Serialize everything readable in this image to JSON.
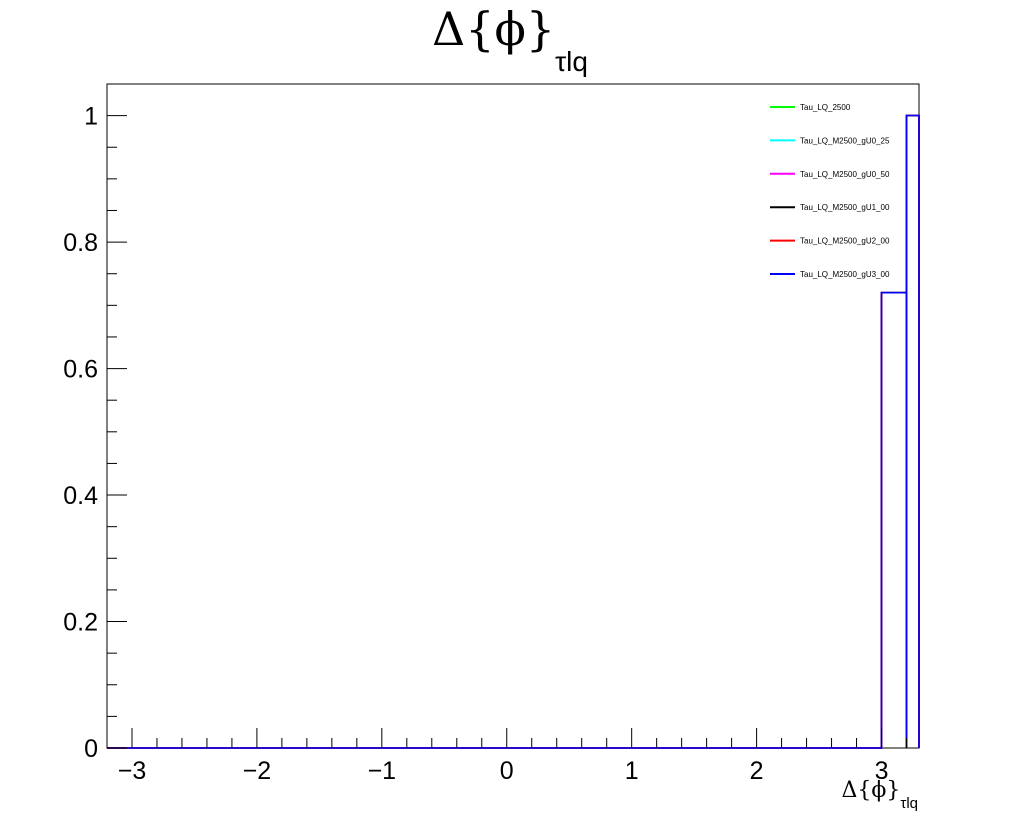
{
  "chart_data": {
    "type": "line",
    "title": {
      "main": "Δ{ϕ}",
      "sub": "τlq"
    },
    "xlabel": {
      "main": "Δ{ϕ}",
      "sub": "τlq"
    },
    "ylabel": "",
    "xlim": [
      -3.2,
      3.3
    ],
    "ylim": [
      0,
      1.05
    ],
    "x_ticks": [
      -3,
      -2,
      -1,
      0,
      1,
      2,
      3
    ],
    "x_tick_labels": [
      "−3",
      "−2",
      "−1",
      "0",
      "1",
      "2",
      "3"
    ],
    "y_ticks": [
      0,
      0.2,
      0.4,
      0.6,
      0.8,
      1
    ],
    "y_tick_labels": [
      "0",
      "0.2",
      "0.4",
      "0.6",
      "0.8",
      "1"
    ],
    "grid": false,
    "legend_position": "top-right",
    "bins": [
      [
        3.0,
        3.2,
        0.72
      ],
      [
        3.2,
        3.3,
        1.0
      ]
    ],
    "series": [
      {
        "name": "Tau_LQ_2500",
        "color": "#00ff00"
      },
      {
        "name": "Tau_LQ_M2500_gU0_25",
        "color": "#00ffff"
      },
      {
        "name": "Tau_LQ_M2500_gU0_50",
        "color": "#ff00ff"
      },
      {
        "name": "Tau_LQ_M2500_gU1_00",
        "color": "#000000"
      },
      {
        "name": "Tau_LQ_M2500_gU2_00",
        "color": "#ff0000"
      },
      {
        "name": "Tau_LQ_M2500_gU3_00",
        "color": "#0000ff"
      }
    ]
  }
}
